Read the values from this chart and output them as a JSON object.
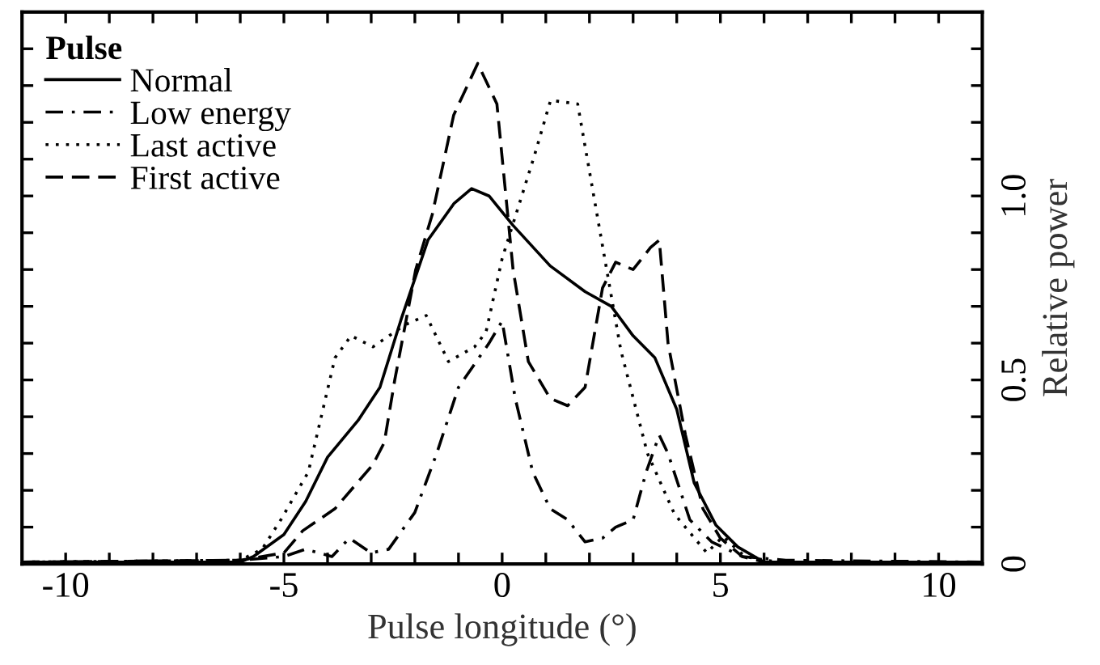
{
  "chart_data": {
    "type": "line",
    "xlabel": "Pulse longitude (°)",
    "ylabel": "Relative power",
    "legend_title": "Pulse",
    "legend": "top left",
    "grid": false,
    "xlim": [
      -11,
      11
    ],
    "ylim": [
      0,
      1.5
    ],
    "xticks": [
      -10,
      {
        "value": -9,
        "label": null
      },
      {
        "value": -8,
        "label": null
      },
      {
        "value": -7,
        "label": null
      },
      {
        "value": -6,
        "label": null
      },
      -5,
      {
        "value": -4,
        "label": null
      },
      {
        "value": -3,
        "label": null
      },
      {
        "value": -2,
        "label": null
      },
      {
        "value": -1,
        "label": null
      },
      0,
      {
        "value": 1,
        "label": null
      },
      {
        "value": 2,
        "label": null
      },
      {
        "value": 3,
        "label": null
      },
      {
        "value": 4,
        "label": null
      },
      5,
      {
        "value": 6,
        "label": null
      },
      {
        "value": 7,
        "label": null
      },
      {
        "value": 8,
        "label": null
      },
      {
        "value": 9,
        "label": null
      },
      10
    ],
    "yticks": [
      0,
      {
        "value": 0.1,
        "label": null
      },
      {
        "value": 0.2,
        "label": null
      },
      {
        "value": 0.3,
        "label": null
      },
      {
        "value": 0.4,
        "label": null
      },
      0.5,
      {
        "value": 0.6,
        "label": null
      },
      {
        "value": 0.7,
        "label": null
      },
      {
        "value": 0.8,
        "label": null
      },
      {
        "value": 0.9,
        "label": null
      },
      {
        "value": 1.0,
        "label": "1.0"
      },
      {
        "value": 1.1,
        "label": null
      },
      {
        "value": 1.2,
        "label": null
      },
      {
        "value": 1.3,
        "label": null
      },
      {
        "value": 1.4,
        "label": null
      }
    ],
    "series": [
      {
        "name": "Normal",
        "color": "#000000",
        "line_style": "solid",
        "x": [
          -11,
          -6,
          -5.7,
          -5,
          -4.5,
          -4,
          -3.3,
          -2.8,
          -2.3,
          -1.7,
          -1.1,
          -0.7,
          -0.3,
          0.25,
          1.1,
          1.9,
          2.5,
          3.0,
          3.5,
          4.0,
          4.4,
          4.9,
          5.4,
          6.0,
          11
        ],
        "values": [
          0.005,
          0.005,
          0.02,
          0.08,
          0.17,
          0.29,
          0.39,
          0.48,
          0.67,
          0.88,
          0.98,
          1.02,
          1.0,
          0.92,
          0.81,
          0.74,
          0.7,
          0.62,
          0.56,
          0.42,
          0.22,
          0.105,
          0.046,
          0.005,
          0.005
        ]
      },
      {
        "name": "Low energy",
        "color": "#000000",
        "line_style": "dashdot",
        "x": [
          -11,
          -6,
          -5,
          -4.5,
          -3.9,
          -3.5,
          -3.0,
          -2.6,
          -2.0,
          -1.5,
          -1.0,
          -0.3,
          0,
          0.3,
          0.7,
          1.1,
          1.5,
          1.9,
          2.3,
          2.6,
          3.0,
          3.3,
          3.6,
          3.8,
          4.3,
          4.8,
          5.5,
          6.5,
          11
        ],
        "values": [
          0.005,
          0.01,
          0.02,
          0.04,
          0.02,
          0.07,
          0.03,
          0.04,
          0.14,
          0.3,
          0.48,
          0.6,
          0.66,
          0.45,
          0.25,
          0.15,
          0.12,
          0.06,
          0.07,
          0.1,
          0.12,
          0.25,
          0.35,
          0.3,
          0.12,
          0.06,
          0.02,
          0.01,
          0.005
        ]
      },
      {
        "name": "Last active",
        "color": "#000000",
        "line_style": "dotted",
        "x": [
          -11,
          -6,
          -5.5,
          -5.07,
          -4.44,
          -3.83,
          -3.46,
          -2.96,
          -2.22,
          -1.74,
          -1.23,
          -0.63,
          -0.37,
          0,
          0.74,
          1.11,
          1.73,
          2.35,
          2.72,
          3.33,
          3.95,
          4.69,
          5.06,
          5.56,
          6.3,
          11
        ],
        "values": [
          0.005,
          0.01,
          0.04,
          0.12,
          0.25,
          0.56,
          0.62,
          0.59,
          0.65,
          0.675,
          0.55,
          0.59,
          0.63,
          0.83,
          1.11,
          1.26,
          1.25,
          0.83,
          0.58,
          0.3,
          0.135,
          0.03,
          0.075,
          0.02,
          0.005,
          0.005
        ]
      },
      {
        "name": "First active",
        "color": "#000000",
        "line_style": "dashed",
        "x": [
          -11,
          -6,
          -5,
          -4.57,
          -3.83,
          -2.96,
          -2.7,
          -2.46,
          -1.98,
          -1.6,
          -1.11,
          -0.56,
          -0.12,
          0.25,
          0.6,
          1.1,
          1.5,
          1.9,
          2.3,
          2.6,
          3.0,
          3.4,
          3.6,
          3.8,
          4.2,
          4.6,
          5.0,
          5.5,
          6,
          11
        ],
        "values": [
          0.005,
          0.01,
          0.03,
          0.09,
          0.15,
          0.27,
          0.33,
          0.5,
          0.8,
          0.95,
          1.22,
          1.36,
          1.25,
          0.8,
          0.55,
          0.45,
          0.43,
          0.48,
          0.75,
          0.82,
          0.8,
          0.86,
          0.88,
          0.6,
          0.35,
          0.15,
          0.07,
          0.02,
          0.005,
          0.005
        ]
      }
    ]
  }
}
